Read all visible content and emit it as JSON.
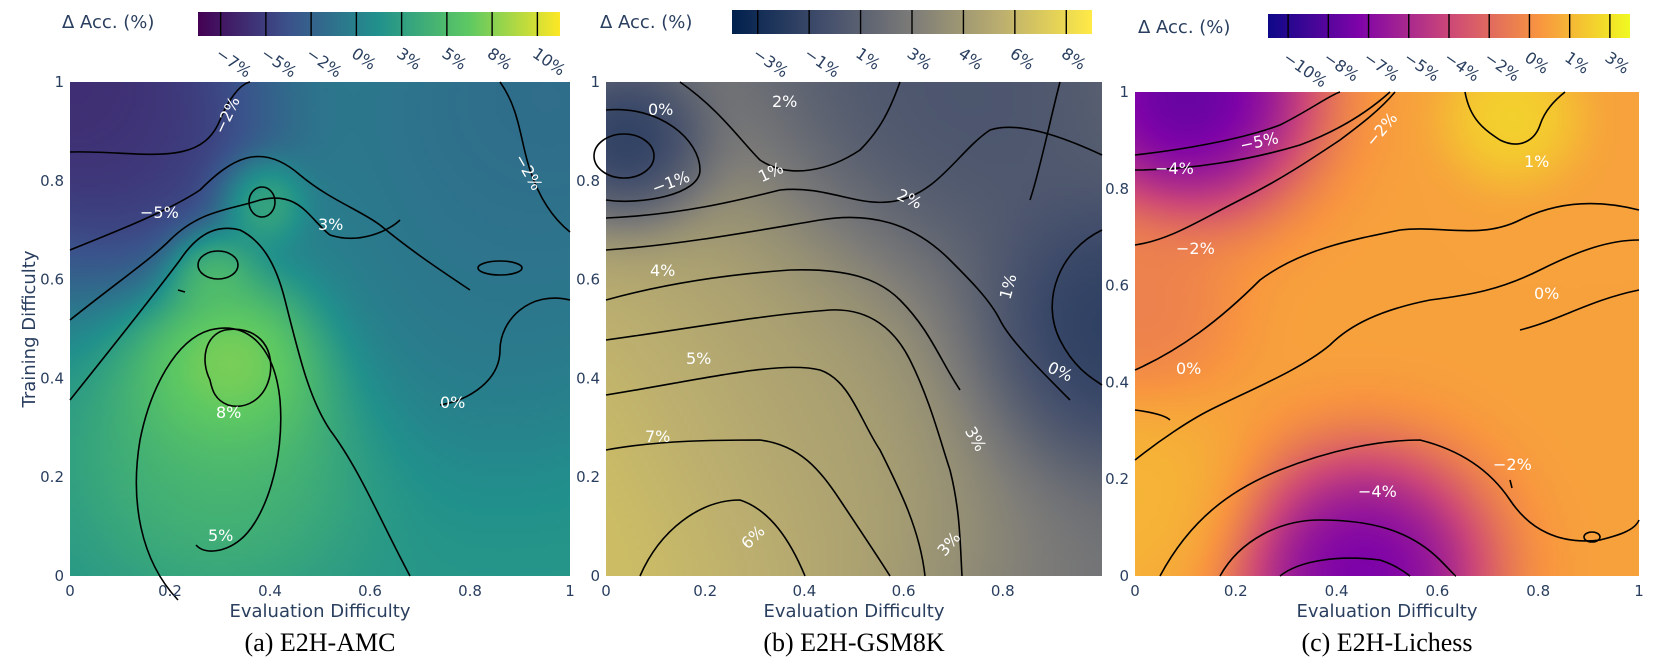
{
  "figure": {
    "colors": {
      "viridis": [
        "#440154",
        "#3b528b",
        "#21918c",
        "#5ec962",
        "#fde725"
      ],
      "cividis": [
        "#00204d",
        "#414d6b",
        "#7c7b78",
        "#bcaf6f",
        "#ffea46"
      ],
      "plasma": [
        "#0d0887",
        "#7e03a8",
        "#cc4778",
        "#f89540",
        "#f0f921"
      ],
      "text_axis": "#2a3f5f",
      "contour_line": "#000000",
      "contour_label": "#ffffff"
    }
  },
  "chart_data": [
    {
      "type": "heatmap",
      "subtype": "contour",
      "panel": "a",
      "caption": "(a) E2H-AMC",
      "colorscale": "viridis",
      "xlabel": "Evaluation Difficulty",
      "ylabel": "Training Difficulty",
      "x_range": [
        0,
        1
      ],
      "y_range": [
        0,
        1
      ],
      "x_ticks": [
        "0",
        "0.2",
        "0.4",
        "0.6",
        "0.8",
        "1"
      ],
      "y_ticks": [
        "0",
        "0.2",
        "0.4",
        "0.6",
        "0.8",
        "1"
      ],
      "colorbar": {
        "title": "Δ Acc. (%)",
        "range": [
          -9,
          11
        ],
        "ticks": [
          "−7%",
          "−5%",
          "−2%",
          "0%",
          "3%",
          "5%",
          "8%",
          "10%"
        ]
      },
      "contour_labels": [
        "−2%",
        "−2%",
        "−5%",
        "3%",
        "8%",
        "0%",
        "5%"
      ],
      "blobs": [
        {
          "x": 0.0,
          "y": 1.0,
          "value": -9,
          "sigma": 0.22
        },
        {
          "x": 0.15,
          "y": 0.85,
          "value": -6,
          "sigma": 0.13
        },
        {
          "x": 0.32,
          "y": 0.42,
          "value": 10,
          "sigma": 0.1
        },
        {
          "x": 0.3,
          "y": 0.25,
          "value": 5,
          "sigma": 0.15
        },
        {
          "x": 0.28,
          "y": 0.62,
          "value": 7,
          "sigma": 0.05
        },
        {
          "x": 0.38,
          "y": 0.76,
          "value": 6,
          "sigma": 0.05
        },
        {
          "x": 0.95,
          "y": 0.95,
          "value": -3,
          "sigma": 0.25
        },
        {
          "x": 0.85,
          "y": 0.6,
          "value": -1.5,
          "sigma": 0.2
        }
      ],
      "base_value": 1.5
    },
    {
      "type": "heatmap",
      "subtype": "contour",
      "panel": "b",
      "caption": "(b) E2H-GSM8K",
      "colorscale": "cividis",
      "xlabel": "Evaluation Difficulty",
      "ylabel": "",
      "x_range": [
        0,
        1
      ],
      "y_range": [
        0,
        1
      ],
      "x_ticks": [
        "0",
        "0.2",
        "0.4",
        "0.6",
        "0.8"
      ],
      "y_ticks": [
        "0",
        "0.2",
        "0.4",
        "0.6",
        "0.8",
        "1"
      ],
      "colorbar": {
        "title": "Δ Acc. (%)",
        "range": [
          -4,
          8.5
        ],
        "ticks": [
          "−3%",
          "−1%",
          "1%",
          "3%",
          "4%",
          "6%",
          "8%"
        ]
      },
      "contour_labels": [
        "0%",
        "2%",
        "−1%",
        "1%",
        "2%",
        "4%",
        "1%",
        "5%",
        "0%",
        "7%",
        "3%",
        "6%",
        "3%"
      ],
      "blobs": [
        {
          "x": 0.04,
          "y": 0.86,
          "value": -4,
          "sigma": 0.09
        },
        {
          "x": 0.0,
          "y": 0.15,
          "value": 8.5,
          "sigma": 0.35
        },
        {
          "x": 0.3,
          "y": 0.3,
          "value": 4,
          "sigma": 0.25
        },
        {
          "x": 1.0,
          "y": 0.5,
          "value": -3,
          "sigma": 0.15
        },
        {
          "x": 0.7,
          "y": 0.95,
          "value": -1,
          "sigma": 0.2
        }
      ],
      "base_value": 1.5
    },
    {
      "type": "heatmap",
      "subtype": "contour",
      "panel": "c",
      "caption": "(c) E2H-Lichess",
      "colorscale": "plasma",
      "xlabel": "Evaluation Difficulty",
      "ylabel": "",
      "x_range": [
        0,
        1
      ],
      "y_range": [
        0,
        1
      ],
      "x_ticks": [
        "0",
        "0.2",
        "0.4",
        "0.6",
        "0.8",
        "1"
      ],
      "y_ticks": [
        "0",
        "0.2",
        "0.4",
        "0.6",
        "0.8",
        "1"
      ],
      "colorbar": {
        "title": "Δ Acc. (%)",
        "range": [
          -12,
          4
        ],
        "ticks": [
          "−10%",
          "−8%",
          "−7%",
          "−5%",
          "−4%",
          "−2%",
          "0%",
          "1%",
          "3%"
        ]
      },
      "contour_labels": [
        "−5%",
        "−2%",
        "−4%",
        "1%",
        "−2%",
        "0%",
        "0%",
        "−2%",
        "−4%"
      ],
      "blobs": [
        {
          "x": 0.1,
          "y": 1.0,
          "value": -12,
          "sigma": 0.13
        },
        {
          "x": 0.45,
          "y": 0.0,
          "value": -11,
          "sigma": 0.13
        },
        {
          "x": 0.75,
          "y": 0.95,
          "value": 3,
          "sigma": 0.07
        },
        {
          "x": 0.0,
          "y": 0.55,
          "value": -1.5,
          "sigma": 0.1
        },
        {
          "x": 0.0,
          "y": 0.15,
          "value": 1.5,
          "sigma": 0.12
        }
      ],
      "base_value": 0.5
    }
  ]
}
